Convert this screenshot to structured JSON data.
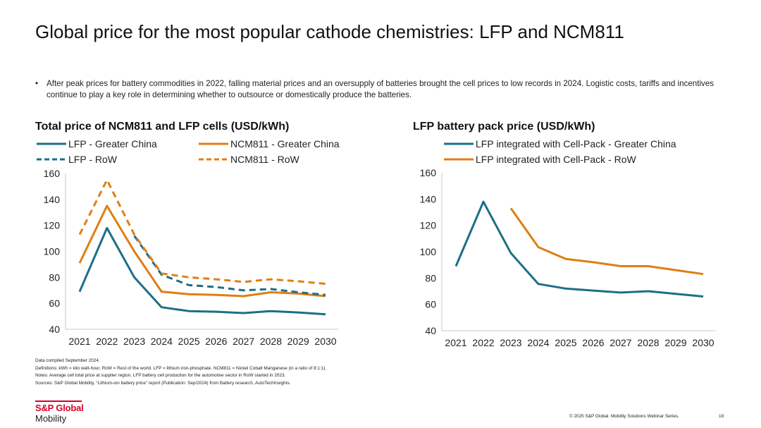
{
  "slide": {
    "title": "Global price for the most popular cathode chemistries: LFP and NCM811",
    "bullet": "After peak prices for battery commodities in 2022, falling material prices and an oversupply of batteries brought the cell prices to low records in 2024. Logistic costs, tariffs and incentives continue to play a key role in determining whether to outsource or domestically produce the batteries."
  },
  "footnotes": [
    "Data compiled September 2024.",
    "Definitions: kWh = kilo watt-hour.  RoW = Rest of the world. LFP = lithium iron-phosphate. NCM811 = Nickel Cobalt Manganese (in a ratio of 8:1:1).",
    "Notes: Average cell total price at supplier region. LFP battery cell production for the automotive sector in RoW started in 2023.",
    "Sources: S&P Global Mobility, “Lithium-ion battery price” report (Publication: Sep/2024) from Battery research, AutoTechInsights."
  ],
  "brand": {
    "top": "S&P Global",
    "bottom": "Mobility",
    "accent": "#d6002a"
  },
  "footer": {
    "copyright": "© 2025 S&P Global. Mobility Solutions Webinar Series.",
    "page": "19"
  },
  "colors": {
    "teal": "#1c6f87",
    "orange": "#e07e14"
  },
  "chart_data": [
    {
      "type": "line",
      "title": "Total price of NCM811 and LFP cells (USD/kWh)",
      "x": [
        "2021",
        "2022",
        "2023",
        "2024",
        "2025",
        "2026",
        "2027",
        "2028",
        "2029",
        "2030"
      ],
      "ylim": [
        40,
        160
      ],
      "yticks": [
        40,
        60,
        80,
        100,
        120,
        140,
        160
      ],
      "grid": false,
      "legend_position": "top",
      "series": [
        {
          "name": "LFP - Greater China",
          "color": "#1c6f87",
          "dash": "solid",
          "values": [
            69,
            118,
            80,
            57,
            54,
            53.5,
            52.5,
            54,
            53,
            51.5
          ]
        },
        {
          "name": "NCM811 - Greater China",
          "color": "#e07e14",
          "dash": "solid",
          "values": [
            91,
            135,
            100,
            69,
            67,
            66.5,
            65.5,
            68.5,
            67.5,
            65.5
          ]
        },
        {
          "name": "LFP - RoW",
          "color": "#1c6f87",
          "dash": "dashed",
          "values": [
            null,
            null,
            112,
            82,
            74,
            72.5,
            70,
            71,
            68.5,
            66.5
          ]
        },
        {
          "name": "NCM811 - RoW",
          "color": "#e07e14",
          "dash": "dashed",
          "values": [
            113,
            155,
            113,
            83,
            80,
            78.5,
            76.5,
            78.5,
            77,
            75
          ]
        }
      ]
    },
    {
      "type": "line",
      "title": "LFP battery pack price (USD/kWh)",
      "x": [
        "2021",
        "2022",
        "2023",
        "2024",
        "2025",
        "2026",
        "2027",
        "2028",
        "2029",
        "2030"
      ],
      "ylim": [
        40,
        160
      ],
      "yticks": [
        40,
        60,
        80,
        100,
        120,
        140,
        160
      ],
      "grid": false,
      "legend_position": "top",
      "series": [
        {
          "name": "LFP integrated with Cell-Pack - Greater China",
          "color": "#1c6f87",
          "dash": "solid",
          "values": [
            89,
            138,
            99,
            75.5,
            72,
            70.5,
            69,
            70,
            68,
            66
          ]
        },
        {
          "name": "LFP integrated with Cell-Pack - RoW",
          "color": "#e07e14",
          "dash": "solid",
          "values": [
            null,
            null,
            133,
            103.5,
            94.5,
            92,
            89,
            89,
            86,
            83
          ]
        }
      ]
    }
  ]
}
